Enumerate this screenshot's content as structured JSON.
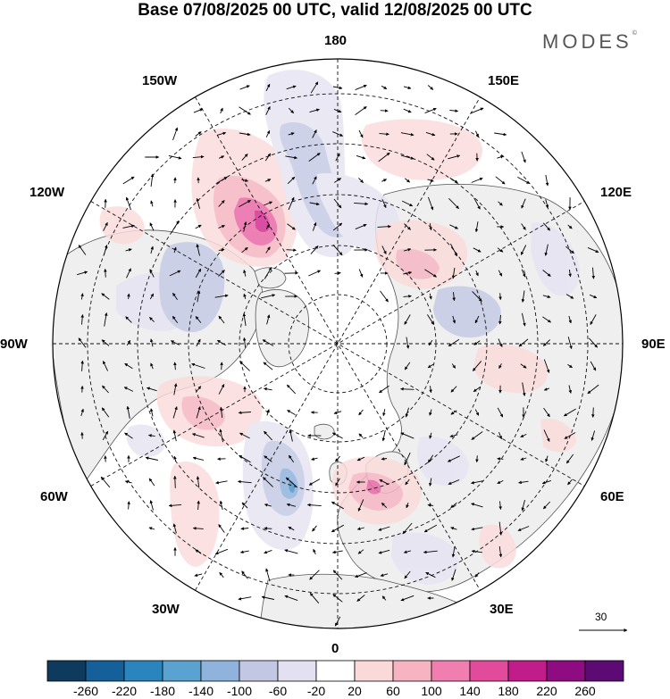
{
  "title": "Base 07/08/2025 00 UTC, valid 12/08/2025 00 UTC",
  "brand": "MODES",
  "brand_mark": "©",
  "longitude_labels": {
    "top": "180",
    "bottom": "0",
    "left": "90W",
    "right": "90E",
    "upper_left_outer": "150W",
    "upper_left_inner": "120W",
    "upper_right_outer": "150E",
    "upper_right_inner": "120E",
    "lower_left_outer": "60W",
    "lower_left_inner": "30W",
    "lower_right_outer": "60E",
    "lower_right_inner": "30E"
  },
  "vector_scale": {
    "value": "30"
  },
  "colorbar": {
    "labels": [
      "-260",
      "-220",
      "-180",
      "-140",
      "-100",
      "-60",
      "-20",
      "20",
      "60",
      "100",
      "140",
      "180",
      "220",
      "260"
    ],
    "colors": [
      "#0e3a5e",
      "#15609a",
      "#2a84be",
      "#5aa2cf",
      "#8fb3dc",
      "#c2c8e4",
      "#e3e1f1",
      "#ffffff",
      "#fbd9d9",
      "#f6b3c1",
      "#f07fb0",
      "#e24b9c",
      "#c01c8a",
      "#8e0b82",
      "#5c0a74"
    ]
  },
  "map_colors": {
    "land": "#efefef",
    "ocean": "#ffffff",
    "coast": "#555555",
    "grid": "#111111",
    "anom_pos_light": "#fbdcdc",
    "anom_pos_mid": "#f6b7c4",
    "anom_pos_strong": "#e96aa8",
    "anom_pos_max": "#d32f93",
    "anom_neg_light": "#e6e4f2",
    "anom_neg_mid": "#c5cbe6",
    "anom_neg_strong": "#8fb3dc",
    "anom_neg_max": "#4f93c7"
  }
}
